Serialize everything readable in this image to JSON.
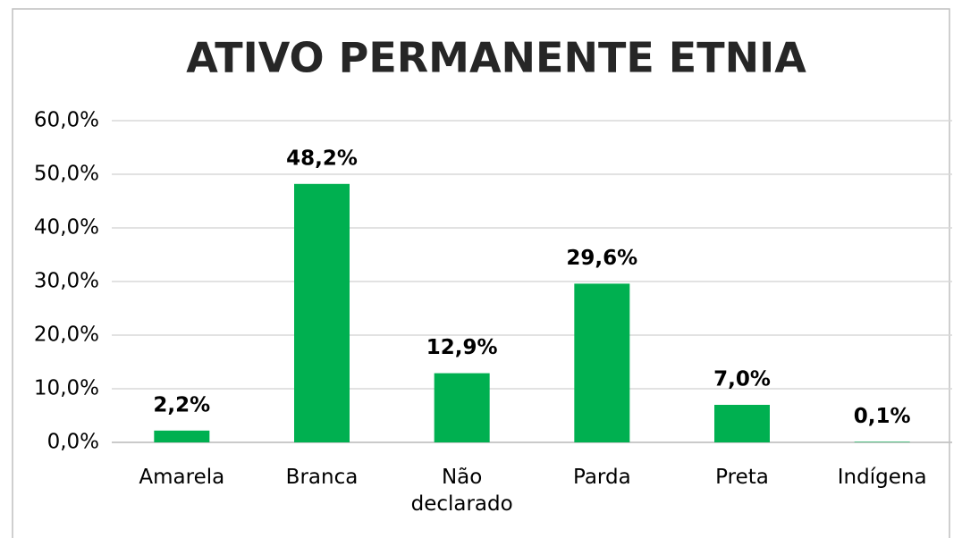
{
  "chart_data": {
    "type": "bar",
    "title": "ATIVO PERMANENTE ETNIA",
    "categories": [
      "Amarela",
      "Branca",
      "Não declarado",
      "Parda",
      "Preta",
      "Indígena"
    ],
    "values": [
      2.2,
      48.2,
      12.9,
      29.6,
      7.0,
      0.1
    ],
    "value_labels": [
      "2,2%",
      "48,2%",
      "12,9%",
      "29,6%",
      "7,0%",
      "0,1%"
    ],
    "color": "#00b050",
    "ylim": [
      0,
      60
    ],
    "yticks": [
      {
        "value": 0,
        "label": "0,0%"
      },
      {
        "value": 10,
        "label": "10,0%"
      },
      {
        "value": 20,
        "label": "20,0%"
      },
      {
        "value": 30,
        "label": "30,0%"
      },
      {
        "value": 40,
        "label": "40,0%"
      },
      {
        "value": 50,
        "label": "50,0%"
      },
      {
        "value": 60,
        "label": "60,0%"
      }
    ],
    "grid": true
  }
}
